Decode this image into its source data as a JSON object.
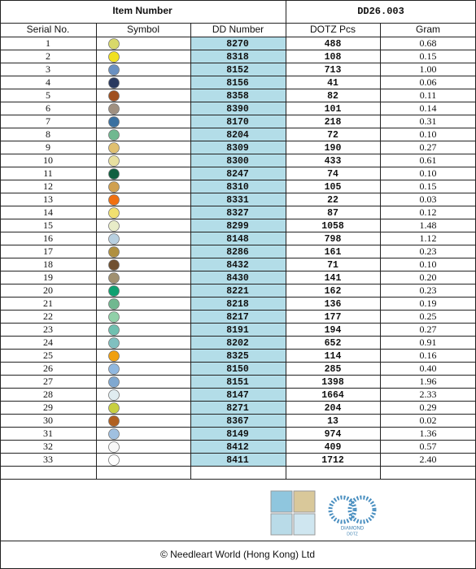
{
  "header": {
    "label": "Item Number",
    "value": "DD26.003"
  },
  "table": {
    "columns": [
      "Serial No.",
      "Symbol",
      "DD Number",
      "DOTZ Pcs",
      "Gram"
    ],
    "rows": [
      {
        "serial": "1",
        "color": "#d8d86a",
        "dd": "8270",
        "pcs": "488",
        "gram": "0.68"
      },
      {
        "serial": "2",
        "color": "#f0e020",
        "dd": "8318",
        "pcs": "108",
        "gram": "0.15"
      },
      {
        "serial": "3",
        "color": "#6a90c0",
        "dd": "8152",
        "pcs": "713",
        "gram": "1.00"
      },
      {
        "serial": "4",
        "color": "#2a3a60",
        "dd": "8156",
        "pcs": "41",
        "gram": "0.06"
      },
      {
        "serial": "5",
        "color": "#a05020",
        "dd": "8358",
        "pcs": "82",
        "gram": "0.11"
      },
      {
        "serial": "6",
        "color": "#a09080",
        "dd": "8390",
        "pcs": "101",
        "gram": "0.14"
      },
      {
        "serial": "7",
        "color": "#3a70a0",
        "dd": "8170",
        "pcs": "218",
        "gram": "0.31"
      },
      {
        "serial": "8",
        "color": "#70b890",
        "dd": "8204",
        "pcs": "72",
        "gram": "0.10"
      },
      {
        "serial": "9",
        "color": "#e0c070",
        "dd": "8309",
        "pcs": "190",
        "gram": "0.27"
      },
      {
        "serial": "10",
        "color": "#e8e0a0",
        "dd": "8300",
        "pcs": "433",
        "gram": "0.61"
      },
      {
        "serial": "11",
        "color": "#106040",
        "dd": "8247",
        "pcs": "74",
        "gram": "0.10"
      },
      {
        "serial": "12",
        "color": "#d0a050",
        "dd": "8310",
        "pcs": "105",
        "gram": "0.15"
      },
      {
        "serial": "13",
        "color": "#f07010",
        "dd": "8331",
        "pcs": "22",
        "gram": "0.03"
      },
      {
        "serial": "14",
        "color": "#f0e070",
        "dd": "8327",
        "pcs": "87",
        "gram": "0.12"
      },
      {
        "serial": "15",
        "color": "#e8ecc8",
        "dd": "8299",
        "pcs": "1058",
        "gram": "1.48"
      },
      {
        "serial": "16",
        "color": "#b8d0e0",
        "dd": "8148",
        "pcs": "798",
        "gram": "1.12"
      },
      {
        "serial": "17",
        "color": "#b09040",
        "dd": "8286",
        "pcs": "161",
        "gram": "0.23"
      },
      {
        "serial": "18",
        "color": "#705030",
        "dd": "8432",
        "pcs": "71",
        "gram": "0.10"
      },
      {
        "serial": "19",
        "color": "#a09070",
        "dd": "8430",
        "pcs": "141",
        "gram": "0.20"
      },
      {
        "serial": "20",
        "color": "#10a070",
        "dd": "8221",
        "pcs": "162",
        "gram": "0.23"
      },
      {
        "serial": "21",
        "color": "#70b890",
        "dd": "8218",
        "pcs": "136",
        "gram": "0.19"
      },
      {
        "serial": "22",
        "color": "#90d0a8",
        "dd": "8217",
        "pcs": "177",
        "gram": "0.25"
      },
      {
        "serial": "23",
        "color": "#70c0b0",
        "dd": "8191",
        "pcs": "194",
        "gram": "0.27"
      },
      {
        "serial": "24",
        "color": "#80c0c0",
        "dd": "8202",
        "pcs": "652",
        "gram": "0.91"
      },
      {
        "serial": "25",
        "color": "#f0a010",
        "dd": "8325",
        "pcs": "114",
        "gram": "0.16"
      },
      {
        "serial": "26",
        "color": "#90b8e0",
        "dd": "8150",
        "pcs": "285",
        "gram": "0.40"
      },
      {
        "serial": "27",
        "color": "#80a8d0",
        "dd": "8151",
        "pcs": "1398",
        "gram": "1.96"
      },
      {
        "serial": "28",
        "color": "#e0ecf0",
        "dd": "8147",
        "pcs": "1664",
        "gram": "2.33"
      },
      {
        "serial": "29",
        "color": "#c8d040",
        "dd": "8271",
        "pcs": "204",
        "gram": "0.29"
      },
      {
        "serial": "30",
        "color": "#b06020",
        "dd": "8367",
        "pcs": "13",
        "gram": "0.02"
      },
      {
        "serial": "31",
        "color": "#a0c0e0",
        "dd": "8149",
        "pcs": "974",
        "gram": "1.36"
      },
      {
        "serial": "32",
        "color": "#f8f8f8",
        "dd": "8412",
        "pcs": "409",
        "gram": "0.57"
      },
      {
        "serial": "33",
        "color": "#ffffff",
        "dd": "8411",
        "pcs": "1712",
        "gram": "2.40"
      }
    ]
  },
  "logo": {
    "brand": "DIAMOND",
    "sub": "DOTZ"
  },
  "footer": "© Needleart World (Hong Kong) Ltd"
}
